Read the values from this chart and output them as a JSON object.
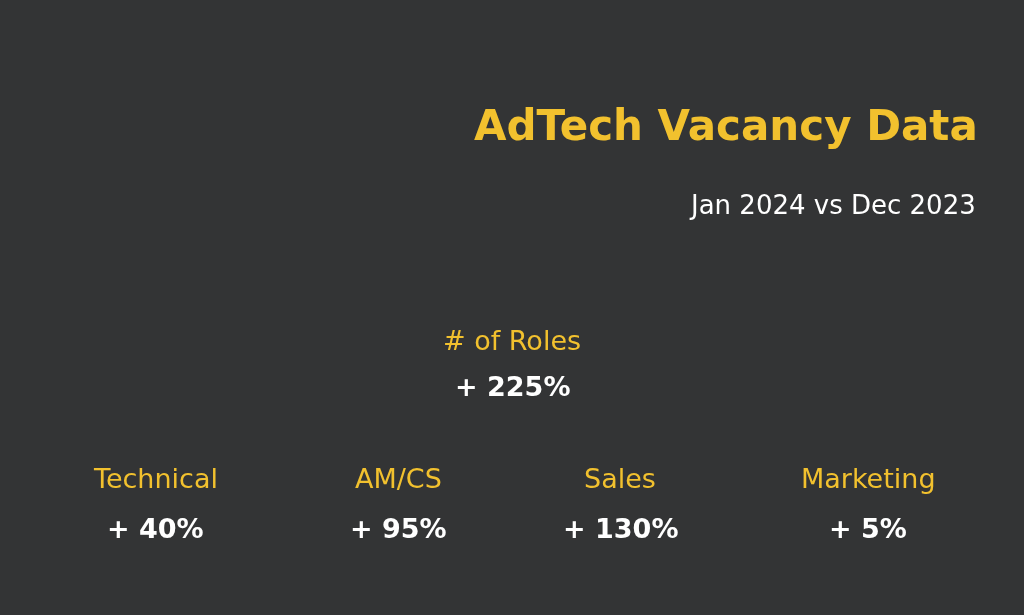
{
  "chart_data": {
    "type": "other",
    "title": "AdTech Vacancy Data",
    "subtitle": "Jan 2024 vs Dec 2023",
    "categories": [
      "# of Roles",
      "Technical",
      "AM/CS",
      "Sales",
      "Marketing"
    ],
    "values": [
      225,
      40,
      95,
      130,
      5
    ],
    "value_labels": [
      "+ 225%",
      "+ 40%",
      "+ 95%",
      "+ 130%",
      "+ 5%"
    ],
    "color": "#f2c12e"
  }
}
